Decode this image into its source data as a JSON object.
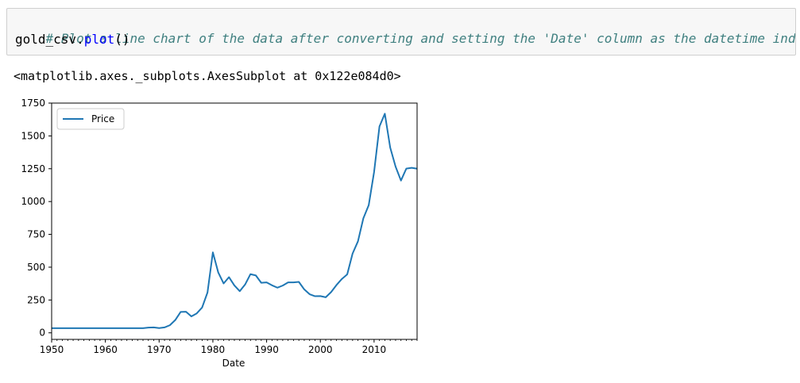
{
  "cell": {
    "comment": "# Plot a line chart of the data after converting and setting the 'Date' column as the datetime index",
    "code_object": "gold_csv",
    "code_dot": ".",
    "code_method": "plot",
    "code_parens": "()"
  },
  "output": {
    "repr": "<matplotlib.axes._subplots.AxesSubplot at 0x122e084d0>"
  },
  "chart_data": {
    "type": "line",
    "xlabel": "Date",
    "ylabel": "",
    "xlim": [
      1950,
      2018
    ],
    "ylim": [
      -50,
      1750
    ],
    "xticks": [
      "1950",
      "1960",
      "1970",
      "1980",
      "1990",
      "2000",
      "2010"
    ],
    "yticks": [
      "0",
      "250",
      "500",
      "750",
      "1000",
      "1250",
      "1500",
      "1750"
    ],
    "legend": {
      "position": "top-left",
      "entries": [
        "Price"
      ]
    },
    "grid": false,
    "colors": {
      "series": "#1f77b4"
    },
    "series": [
      {
        "name": "Price",
        "x": [
          1950,
          1951,
          1952,
          1953,
          1954,
          1955,
          1956,
          1957,
          1958,
          1959,
          1960,
          1961,
          1962,
          1963,
          1964,
          1965,
          1966,
          1967,
          1968,
          1969,
          1970,
          1971,
          1972,
          1973,
          1974,
          1975,
          1976,
          1977,
          1978,
          1979,
          1980,
          1981,
          1982,
          1983,
          1984,
          1985,
          1986,
          1987,
          1988,
          1989,
          1990,
          1991,
          1992,
          1993,
          1994,
          1995,
          1996,
          1997,
          1998,
          1999,
          2000,
          2001,
          2002,
          2003,
          2004,
          2005,
          2006,
          2007,
          2008,
          2009,
          2010,
          2011,
          2012,
          2013,
          2014,
          2015,
          2016,
          2017,
          2018
        ],
        "y": [
          35,
          35,
          35,
          35,
          35,
          35,
          35,
          35,
          35,
          35,
          35,
          35,
          35,
          35,
          35,
          35,
          35,
          35,
          40,
          41,
          36,
          41,
          58,
          97,
          159,
          161,
          125,
          148,
          193,
          307,
          613,
          460,
          376,
          424,
          361,
          317,
          368,
          447,
          437,
          381,
          384,
          362,
          344,
          360,
          384,
          384,
          388,
          331,
          294,
          279,
          280,
          271,
          310,
          364,
          410,
          445,
          604,
          697,
          872,
          972,
          1225,
          1572,
          1669,
          1411,
          1266,
          1160,
          1251,
          1257,
          1250
        ]
      }
    ]
  }
}
